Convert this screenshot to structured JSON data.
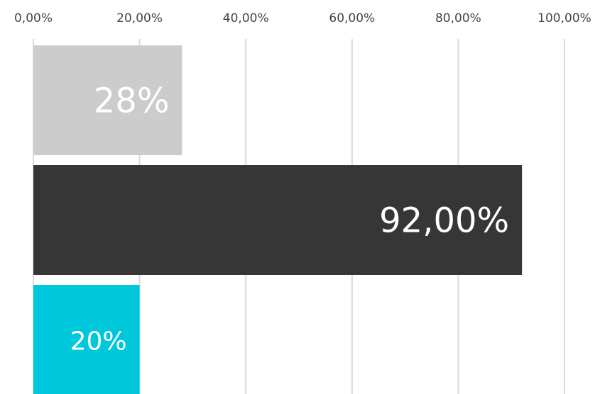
{
  "chart_data": {
    "type": "bar",
    "orientation": "horizontal",
    "categories": [
      null,
      null,
      null
    ],
    "values": [
      28,
      92,
      20
    ],
    "value_labels": [
      "28%",
      "92,00%",
      "20%"
    ],
    "colors": [
      "#cccccc",
      "#363636",
      "#00c8dc"
    ],
    "xlim": [
      0,
      100
    ],
    "xticks": [
      {
        "value": 0,
        "label": "0,00%"
      },
      {
        "value": 20,
        "label": "20,00%"
      },
      {
        "value": 40,
        "label": "40,00%"
      },
      {
        "value": 60,
        "label": "60,00%"
      },
      {
        "value": 80,
        "label": "80,00%"
      },
      {
        "value": 100,
        "label": "100,00%"
      }
    ],
    "grid": true
  }
}
